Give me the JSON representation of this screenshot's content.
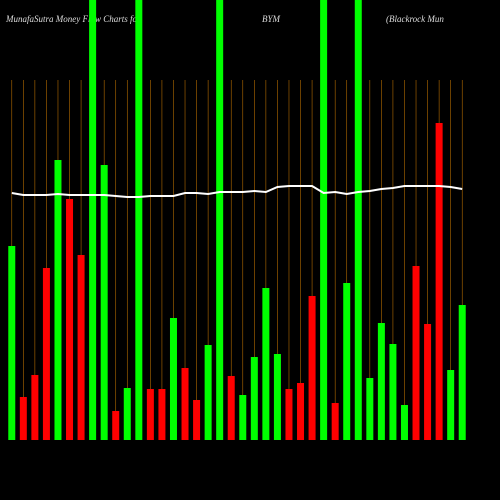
{
  "chart_data": {
    "type": "bar",
    "title": "MunafaSutra  Money Flow  Charts for",
    "symbol": "BYM",
    "subtitle": "(Blackrock Mun",
    "ylim": [
      0,
      440
    ],
    "grid_color": "#b36b00",
    "line_color": "#ffffff",
    "values": [
      194,
      43,
      65,
      172,
      280,
      241,
      185,
      440,
      275,
      29,
      52,
      440,
      51,
      51,
      122,
      72,
      40,
      95,
      440,
      64,
      45,
      83,
      152,
      86,
      51,
      57,
      144,
      440,
      37,
      157,
      440,
      62,
      117,
      96,
      35,
      174,
      116,
      317,
      70,
      135
    ],
    "colors": [
      "#00ff00",
      "#ff0000",
      "#ff0000",
      "#ff0000",
      "#00ff00",
      "#ff0000",
      "#ff0000",
      "#00ff00",
      "#00ff00",
      "#ff0000",
      "#00ff00",
      "#00ff00",
      "#ff0000",
      "#ff0000",
      "#00ff00",
      "#ff0000",
      "#ff0000",
      "#00ff00",
      "#00ff00",
      "#ff0000",
      "#00ff00",
      "#00ff00",
      "#00ff00",
      "#00ff00",
      "#ff0000",
      "#ff0000",
      "#ff0000",
      "#00ff00",
      "#ff0000",
      "#00ff00",
      "#00ff00",
      "#00ff00",
      "#00ff00",
      "#00ff00",
      "#00ff00",
      "#ff0000",
      "#ff0000",
      "#ff0000",
      "#00ff00",
      "#00ff00"
    ],
    "line_values": [
      247,
      245,
      245,
      245,
      246,
      245,
      245,
      245,
      245,
      244,
      243,
      243,
      244,
      244,
      244,
      247,
      247,
      246,
      248,
      248,
      248,
      249,
      248,
      253,
      254,
      254,
      254,
      247,
      248,
      246,
      248,
      249,
      251,
      252,
      254,
      254,
      254,
      254,
      253,
      251
    ]
  }
}
